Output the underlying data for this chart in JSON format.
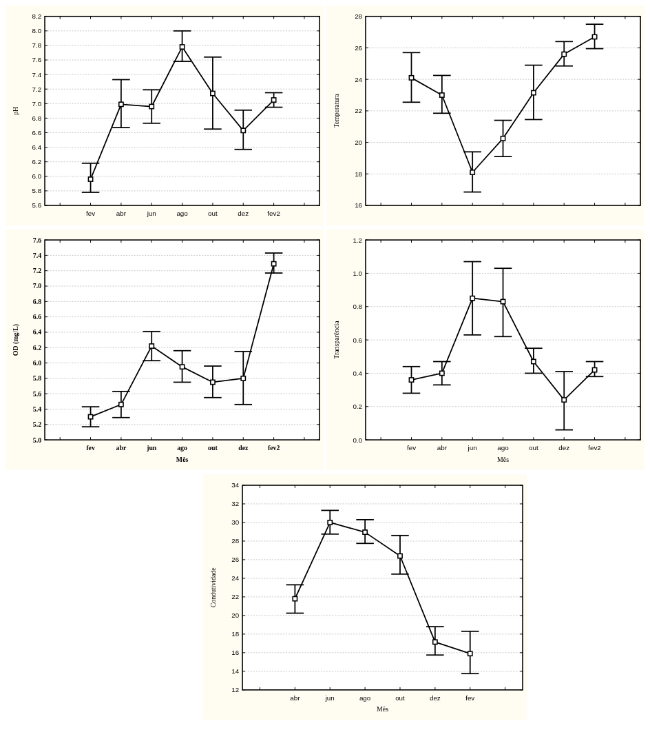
{
  "chart_data": [
    {
      "type": "line",
      "ylabel": "pH",
      "categories": [
        "fev",
        "abr",
        "jun",
        "ago",
        "out",
        "dez",
        "fev2"
      ],
      "color": "#000000",
      "marker": "square",
      "line_style": "solid",
      "grid": "y",
      "ylim": [
        5.6,
        8.2
      ],
      "values": [
        5.96,
        6.99,
        6.96,
        7.78,
        7.14,
        6.63,
        7.05
      ],
      "errors": [
        [
          5.78,
          6.18
        ],
        [
          6.67,
          7.33
        ],
        [
          6.73,
          7.19
        ],
        [
          7.58,
          8.0
        ],
        [
          6.65,
          7.64
        ],
        [
          6.37,
          6.91
        ],
        [
          6.95,
          7.15
        ]
      ],
      "yticks": [
        5.6,
        5.8,
        {
          "value": 6,
          "label": "6.0"
        },
        6.2,
        6.4,
        6.6,
        6.8,
        {
          "value": 7,
          "label": "7.0"
        },
        7.2,
        7.4,
        7.6,
        7.8,
        {
          "value": 8,
          "label": "8.0"
        },
        8.2
      ]
    },
    {
      "type": "line",
      "ylabel": "Temperatura",
      "categories": [
        null,
        null,
        null,
        null,
        null,
        null,
        null
      ],
      "tick_labels": "y",
      "color": "#000000",
      "marker": "square",
      "line_style": "solid",
      "grid": "y",
      "ylim": [
        16,
        28
      ],
      "values": [
        24.1,
        23.0,
        18.1,
        20.25,
        23.15,
        25.6,
        26.7
      ],
      "errors": [
        [
          22.55,
          25.7
        ],
        [
          21.85,
          24.25
        ],
        [
          16.85,
          19.4
        ],
        [
          19.1,
          21.4
        ],
        [
          21.45,
          24.9
        ],
        [
          24.85,
          26.4
        ],
        [
          25.95,
          27.5
        ]
      ],
      "yticks": [
        16,
        18,
        20,
        22,
        24,
        26,
        28
      ]
    },
    {
      "type": "line",
      "ylabel": "OD (mg/L)",
      "xlabel": "Mês",
      "categories": [
        "fev",
        "abr",
        "jun",
        "ago",
        "out",
        "dez",
        "fev2"
      ],
      "color": "#000000",
      "marker": "square",
      "line_style": "solid",
      "grid": "y",
      "ylim": [
        5.0,
        7.6
      ],
      "values": [
        5.3,
        5.46,
        6.22,
        5.95,
        5.75,
        5.8,
        7.29
      ],
      "errors": [
        [
          5.17,
          5.43
        ],
        [
          5.29,
          5.63
        ],
        [
          6.03,
          6.41
        ],
        [
          5.75,
          6.16
        ],
        [
          5.55,
          5.96
        ],
        [
          5.46,
          6.15
        ],
        [
          7.17,
          7.43
        ]
      ],
      "yticks": [
        {
          "value": 5,
          "label": "5.0"
        },
        5.2,
        5.4,
        5.6,
        5.8,
        {
          "value": 6,
          "label": "6.0"
        },
        6.2,
        6.4,
        6.6,
        6.8,
        {
          "value": 7,
          "label": "7.0"
        },
        7.2,
        7.4,
        7.6
      ]
    },
    {
      "type": "line",
      "ylabel": "Transparência",
      "xlabel": "Mês",
      "categories": [
        "fev",
        "abr",
        "jun",
        "ago",
        "out",
        "dez",
        "fev2"
      ],
      "color": "#000000",
      "marker": "square",
      "line_style": "solid",
      "grid": "y",
      "ylim": [
        0,
        1.2
      ],
      "values": [
        0.36,
        0.4,
        0.85,
        0.83,
        0.47,
        0.24,
        0.42
      ],
      "errors": [
        [
          0.28,
          0.44
        ],
        [
          0.33,
          0.47
        ],
        [
          0.63,
          1.07
        ],
        [
          0.62,
          1.03
        ],
        [
          0.4,
          0.55
        ],
        [
          0.06,
          0.41
        ],
        [
          0.38,
          0.47
        ]
      ],
      "yticks": [
        {
          "value": 0,
          "label": "0.0"
        },
        0.2,
        0.4,
        0.6,
        0.8,
        {
          "value": 1,
          "label": "1.0"
        },
        1.2
      ]
    },
    {
      "type": "line",
      "ylabel": "Condutividade",
      "xlabel": "Mês",
      "categories": [
        "abr",
        "jun",
        "ago",
        "out",
        "dez",
        "fev"
      ],
      "color": "#000000",
      "marker": "square",
      "line_style": "solid",
      "grid": "y",
      "ylim": [
        12,
        34
      ],
      "values": [
        21.8,
        30.0,
        28.95,
        26.4,
        17.15,
        15.9
      ],
      "errors": [
        [
          20.25,
          23.3
        ],
        [
          28.75,
          31.3
        ],
        [
          27.75,
          30.3
        ],
        [
          24.45,
          28.6
        ],
        [
          15.75,
          18.8
        ],
        [
          13.75,
          18.3
        ]
      ],
      "yticks": [
        12,
        14,
        16,
        18,
        20,
        22,
        24,
        26,
        28,
        30,
        32,
        34
      ]
    }
  ]
}
